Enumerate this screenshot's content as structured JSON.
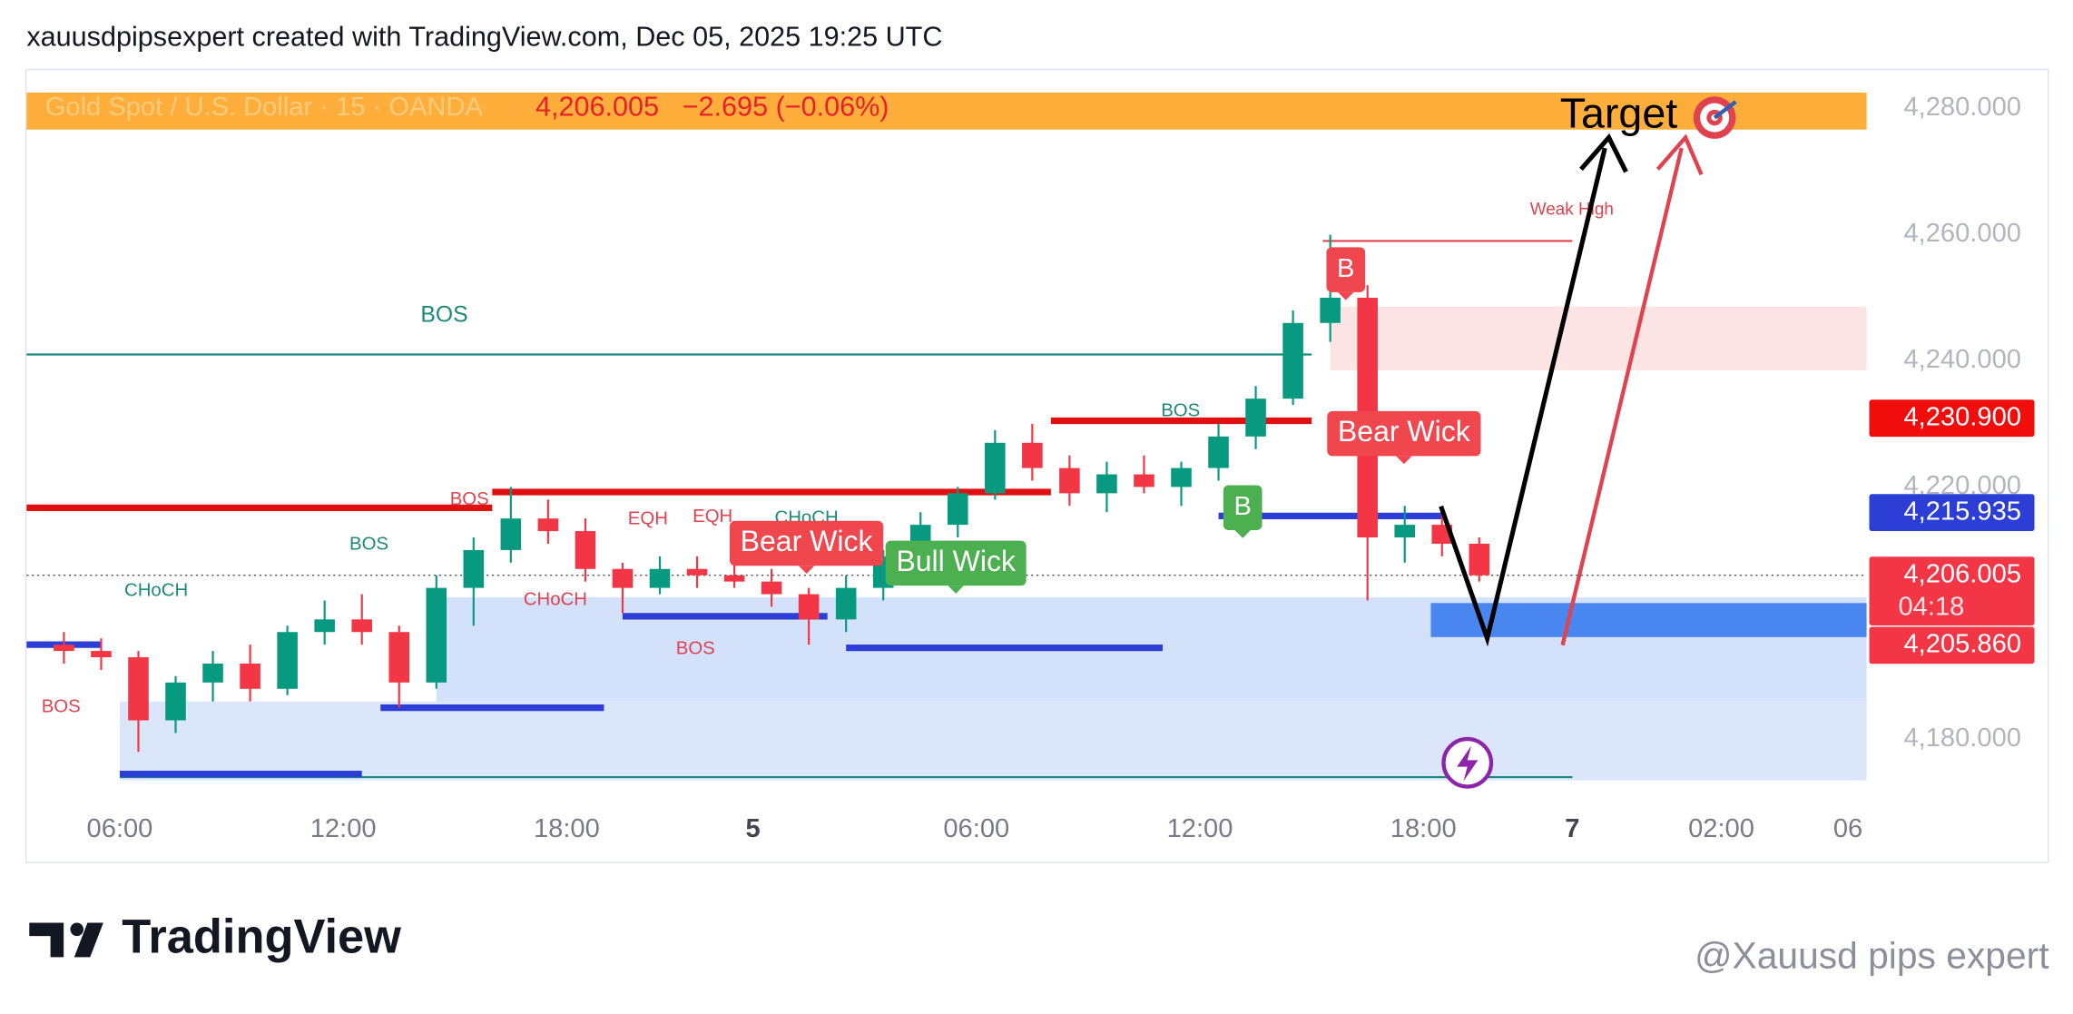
{
  "chart_data": {
    "type": "candlestick",
    "title": "xauusdpipsexpert created with TradingView.com, Dec 05, 2025 19:25 UTC",
    "symbol": "Gold Spot / U.S. Dollar · 15 · OANDA",
    "quote": "4,206.005",
    "change": "−2.695 (−0.06%)",
    "x": [
      4,
      5,
      6,
      7,
      8,
      9,
      10,
      11,
      12,
      13,
      14,
      15,
      16,
      17,
      18,
      19,
      20,
      21,
      22,
      23,
      24,
      25,
      26,
      27,
      28,
      29,
      30,
      31,
      32,
      33,
      34,
      35,
      36,
      37,
      38,
      39,
      40,
      41,
      42
    ],
    "open": [
      4195,
      4194,
      4193,
      4183,
      4189,
      4192,
      4188,
      4197,
      4199,
      4197,
      4189,
      4204,
      4210,
      4215,
      4213,
      4207,
      4204,
      4207,
      4206,
      4205,
      4203,
      4199,
      4204,
      4209,
      4214,
      4219,
      4227,
      4223,
      4219,
      4222,
      4220,
      4223,
      4228,
      4234,
      4246,
      4250,
      4212,
      4214,
      4211
    ],
    "high": [
      4197,
      4196,
      4194,
      4190,
      4194,
      4195,
      4198,
      4202,
      4203,
      4198,
      4206,
      4212,
      4220,
      4218,
      4215,
      4208,
      4209,
      4209,
      4208,
      4207,
      4204,
      4206,
      4210,
      4216,
      4220,
      4229,
      4230,
      4225,
      4224,
      4225,
      4224,
      4230,
      4236,
      4248,
      4260,
      4252,
      4217,
      4216,
      4212
    ],
    "low": [
      4192,
      4191,
      4178,
      4181,
      4186,
      4186,
      4187,
      4195,
      4195,
      4185,
      4188,
      4198,
      4208,
      4211,
      4205,
      4200,
      4203,
      4204,
      4204,
      4201,
      4195,
      4197,
      4202,
      4207,
      4212,
      4218,
      4221,
      4217,
      4216,
      4219,
      4217,
      4221,
      4226,
      4233,
      4243,
      4202,
      4208,
      4209,
      4205
    ],
    "close": [
      4194,
      4193,
      4183,
      4189,
      4192,
      4188,
      4197,
      4199,
      4197,
      4189,
      4204,
      4210,
      4215,
      4213,
      4207,
      4204,
      4207,
      4206,
      4205,
      4203,
      4199,
      4204,
      4209,
      4214,
      4219,
      4227,
      4223,
      4219,
      4222,
      4220,
      4223,
      4228,
      4234,
      4246,
      4250,
      4212,
      4214,
      4211,
      4206
    ],
    "up_color": "#089981",
    "down_color": "#f23645",
    "xlim": [
      3.5,
      52.9
    ],
    "ylim": [
      4170.4,
      4286.3
    ],
    "xticks": [
      {
        "value": 6,
        "label": "06:00"
      },
      {
        "value": 12,
        "label": "12:00"
      },
      {
        "value": 18,
        "label": "18:00"
      },
      {
        "value": 23,
        "label": "5"
      },
      {
        "value": 29,
        "label": "06:00"
      },
      {
        "value": 35,
        "label": "12:00"
      },
      {
        "value": 41,
        "label": "18:00"
      },
      {
        "value": 45,
        "label": "7"
      },
      {
        "value": 49,
        "label": "02:00"
      },
      {
        "value": 52.4,
        "label": "06"
      }
    ],
    "yticks": [
      {
        "value": 4180,
        "label": "4,180.000"
      },
      {
        "value": 4220,
        "label": "4,220.000"
      },
      {
        "value": 4240,
        "label": "4,240.000"
      },
      {
        "value": 4260,
        "label": "4,260.000"
      },
      {
        "value": 4280,
        "label": "4,280.000"
      }
    ],
    "grid": false,
    "zones": [
      {
        "from": 6,
        "to": 52.9,
        "bottom": 4173.5,
        "top": 4186,
        "color": "#dbe6fb"
      },
      {
        "from": 14.5,
        "to": 52.9,
        "bottom": 4186,
        "top": 4202.5,
        "color": "#d3e1fb"
      },
      {
        "from": 38.5,
        "to": 52.9,
        "bottom": 4238.5,
        "top": 4248.6,
        "color": "#fce3e4"
      },
      {
        "from": 41.2,
        "to": 52.9,
        "bottom": 4196.2,
        "top": 4201.6,
        "color": "#4a86f0"
      }
    ],
    "levels": [
      {
        "from": 3.5,
        "to": 38,
        "price": 4241,
        "color": "#1b8a7a",
        "width": 1.5
      },
      {
        "from": 6,
        "to": 45,
        "price": 4174,
        "color": "#1b8a7a",
        "width": 1.5
      },
      {
        "from": 38.3,
        "to": 45,
        "price": 4259,
        "color": "#e0434f",
        "width": 1.5
      },
      {
        "from": 3.5,
        "to": 16,
        "price": 4216.7,
        "color": "#e01010",
        "width": 5
      },
      {
        "from": 16,
        "to": 31,
        "price": 4219.2,
        "color": "#e01010",
        "width": 5
      },
      {
        "from": 31,
        "to": 38,
        "price": 4230.5,
        "color": "#e01010",
        "width": 5
      },
      {
        "from": 3.5,
        "to": 5.5,
        "price": 4195,
        "color": "#2d3ed6",
        "width": 5
      },
      {
        "from": 6,
        "to": 12.5,
        "price": 4174.5,
        "color": "#2d3ed6",
        "width": 5
      },
      {
        "from": 13,
        "to": 19,
        "price": 4185,
        "color": "#2d3ed6",
        "width": 5
      },
      {
        "from": 19.5,
        "to": 25,
        "price": 4199.5,
        "color": "#2d3ed6",
        "width": 5
      },
      {
        "from": 25.5,
        "to": 34,
        "price": 4194.5,
        "color": "#2d3ed6",
        "width": 5
      },
      {
        "from": 35.5,
        "to": 41.5,
        "price": 4215.4,
        "color": "#2d3ed6",
        "width": 5
      }
    ],
    "annotations": [
      {
        "text": "BOS",
        "color": "#1b8a7a"
      },
      {
        "text": "CHoCH",
        "color": "#1b8a7a"
      },
      {
        "text": "BOS",
        "color": "#e0434f"
      },
      {
        "text": "BOS",
        "color": "#1b8a7a"
      },
      {
        "text": "BOS",
        "color": "#e0434f"
      },
      {
        "text": "CHoCH",
        "color": "#e0434f"
      },
      {
        "text": "EQH",
        "color": "#e0434f"
      },
      {
        "text": "EQH",
        "color": "#e0434f"
      },
      {
        "text": "CHoCH",
        "color": "#1b8a7a"
      },
      {
        "text": "BOS",
        "color": "#e0434f"
      },
      {
        "text": "BOS",
        "color": "#1b8a7a"
      },
      {
        "text": "Weak High",
        "color": "#e0434f"
      }
    ],
    "labels": [
      {
        "text": "Bear Wick",
        "color": "#f0474f"
      },
      {
        "text": "Bull Wick",
        "color": "#4caf50"
      },
      {
        "text": "Bear Wick",
        "color": "#f0474f"
      },
      {
        "text": "B",
        "color": "#f0474f"
      },
      {
        "text": "B",
        "color": "#4caf50"
      }
    ],
    "target": "Target",
    "price_tags": [
      {
        "value": 4230.9,
        "label": "4,230.900",
        "color": "#f20d0d"
      },
      {
        "value": 4215.935,
        "label": "4,215.935",
        "color": "#2d3ed6"
      },
      {
        "value": 4206.005,
        "label": "4,206.005",
        "countdown": "04:18",
        "color": "#f23645"
      },
      {
        "value": 4205.86,
        "label": "4,205.860",
        "color": "#f23645"
      }
    ],
    "branding": "TradingView",
    "watermark": "@Xauusd pips expert"
  }
}
